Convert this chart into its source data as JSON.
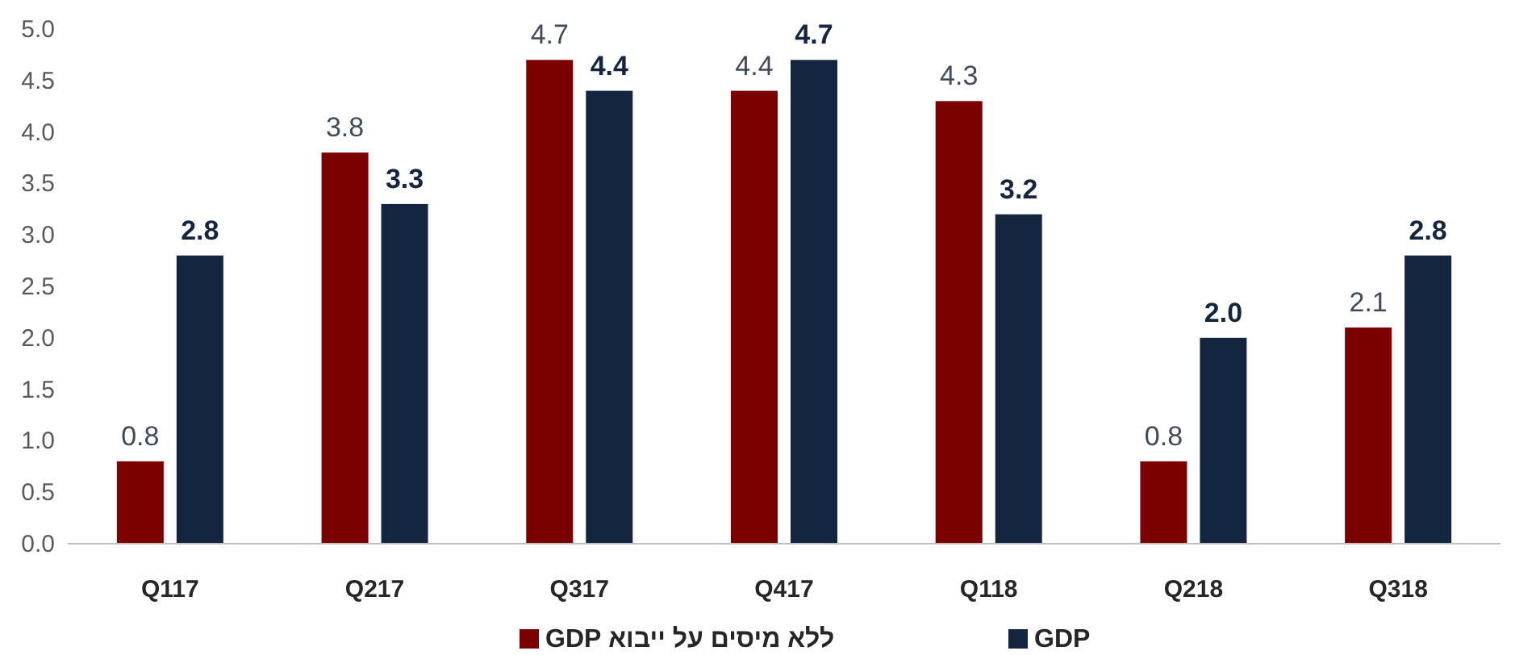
{
  "chart_data": {
    "type": "bar",
    "categories": [
      "Q117",
      "Q217",
      "Q317",
      "Q417",
      "Q118",
      "Q218",
      "Q318"
    ],
    "series": [
      {
        "name": "ללא מיסים על ייבוא GDP",
        "color": "#7b0000",
        "values": [
          0.8,
          3.8,
          4.7,
          4.4,
          4.3,
          0.8,
          2.1
        ]
      },
      {
        "name": "GDP",
        "color": "#14253f",
        "values": [
          2.8,
          3.3,
          4.4,
          4.7,
          3.2,
          2.0,
          2.8
        ]
      }
    ],
    "ylim": [
      0,
      5
    ],
    "yticks": [
      {
        "value": 0,
        "label": "0.0"
      },
      {
        "value": 0.5,
        "label": "0.5"
      },
      {
        "value": 1,
        "label": "1.0"
      },
      {
        "value": 1.5,
        "label": "1.5"
      },
      {
        "value": 2,
        "label": "2.0"
      },
      {
        "value": 2.5,
        "label": "2.5"
      },
      {
        "value": 3,
        "label": "3.0"
      },
      {
        "value": 3.5,
        "label": "3.5"
      },
      {
        "value": 4,
        "label": "4.0"
      },
      {
        "value": 4.5,
        "label": "4.5"
      },
      {
        "value": 5,
        "label": "5.0"
      }
    ],
    "value_labels": [
      [
        "0.8",
        "3.8",
        "4.7",
        "4.4",
        "4.3",
        "0.8",
        "2.1"
      ],
      [
        "2.8",
        "3.3",
        "4.4",
        "4.7",
        "3.2",
        "2.0",
        "2.8"
      ]
    ],
    "legend": "bottom",
    "grid": false
  }
}
